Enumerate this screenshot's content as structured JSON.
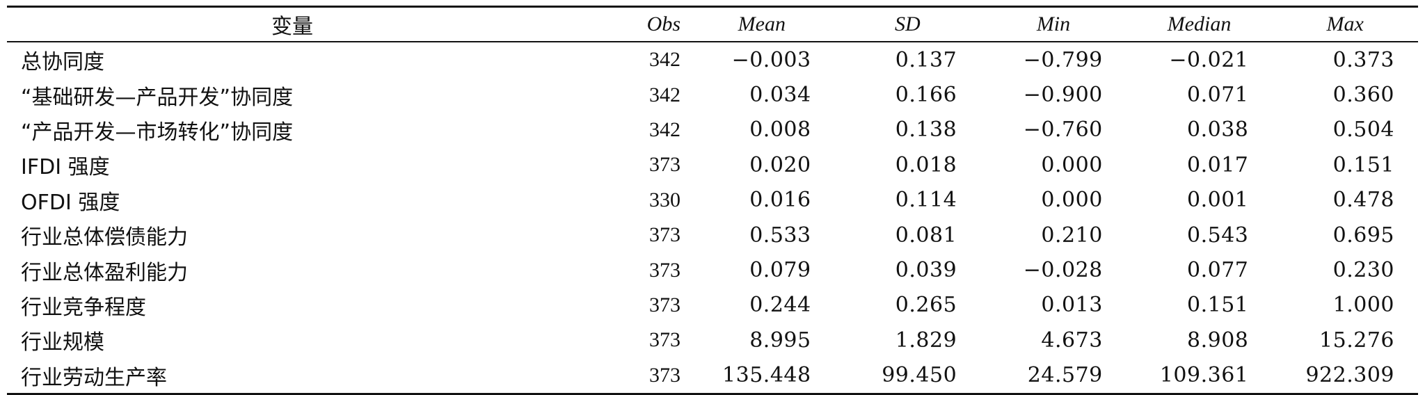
{
  "table": {
    "headers": [
      "变量",
      "Obs",
      "Mean",
      "SD",
      "Min",
      "Median",
      "Max"
    ],
    "rows": [
      [
        "总协同度",
        "342",
        "−0.003",
        "0.137",
        "−0.799",
        "−0.021",
        "0.373"
      ],
      [
        "“基础研发—产品开发”协同度",
        "342",
        "0.034",
        "0.166",
        "−0.900",
        "0.071",
        "0.360"
      ],
      [
        "“产品开发—市场转化”协同度",
        "342",
        "0.008",
        "0.138",
        "−0.760",
        "0.038",
        "0.504"
      ],
      [
        "IFDI 强度",
        "373",
        "0.020",
        "0.018",
        "0.000",
        "0.017",
        "0.151"
      ],
      [
        "OFDI 强度",
        "330",
        "0.016",
        "0.114",
        "0.000",
        "0.001",
        "0.478"
      ],
      [
        "行业总体偿债能力",
        "373",
        "0.533",
        "0.081",
        "0.210",
        "0.543",
        "0.695"
      ],
      [
        "行业总体盈利能力",
        "373",
        "0.079",
        "0.039",
        "−0.028",
        "0.077",
        "0.230"
      ],
      [
        "行业竞争程度",
        "373",
        "0.244",
        "0.265",
        "0.013",
        "0.151",
        "1.000"
      ],
      [
        "行业规模",
        "373",
        "8.995",
        "1.829",
        "4.673",
        "8.908",
        "15.276"
      ],
      [
        "行业劳动生产率",
        "373",
        "135.448",
        "99.450",
        "24.579",
        "109.361",
        "922.309"
      ]
    ]
  }
}
